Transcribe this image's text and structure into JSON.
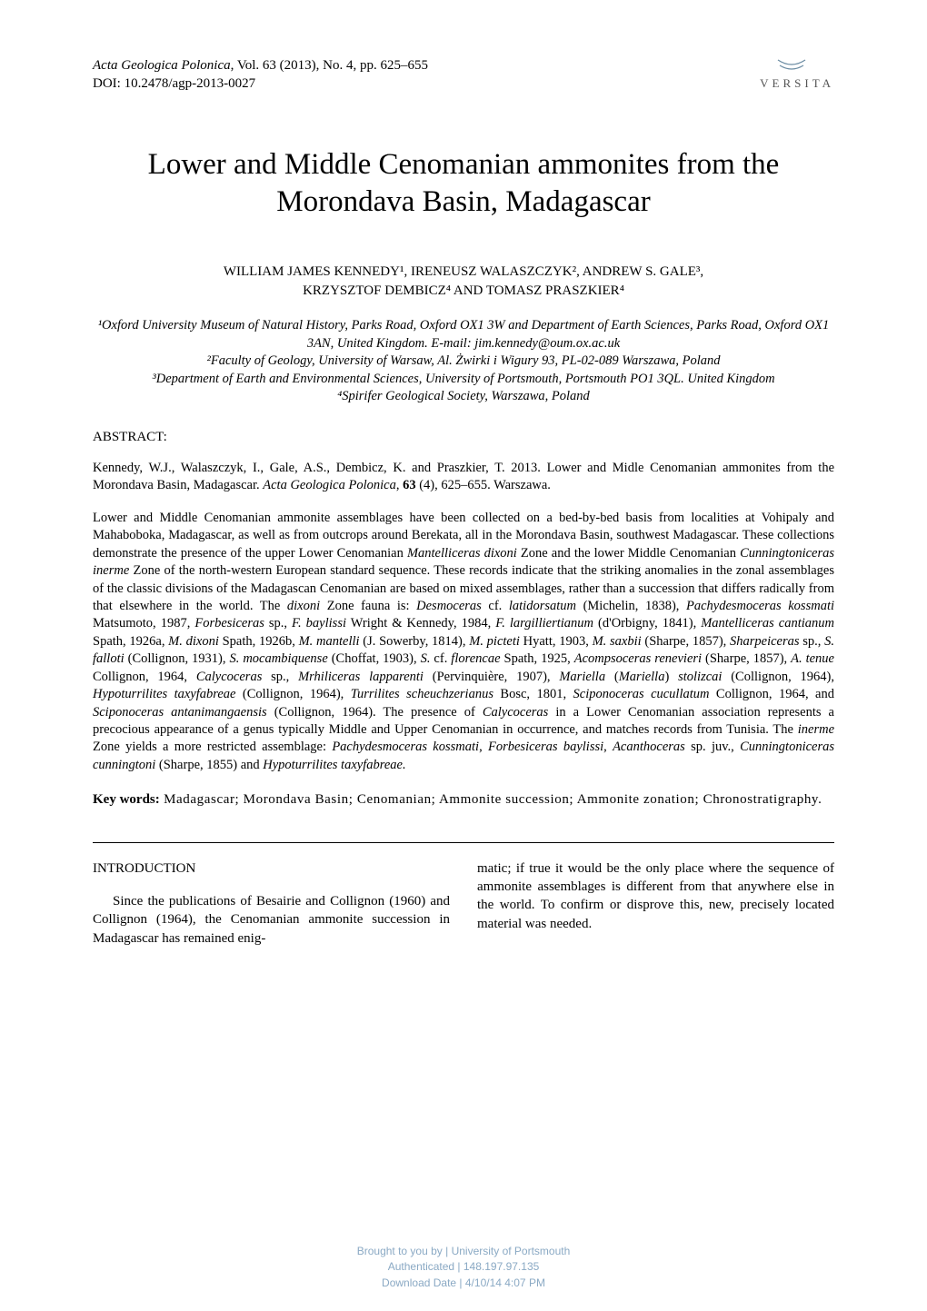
{
  "header": {
    "journal_name": "Acta Geologica Polonica",
    "vol_info": ", Vol. 63 (2013), No. 4, pp. 625–655",
    "doi": "DOI: 10.2478/agp-2013-0027",
    "publisher": "VERSITA",
    "logo_color": "#6b8ca3"
  },
  "title": "Lower and Middle Cenomanian ammonites from the Morondava Basin, Madagascar",
  "authors_line1": "WILLIAM JAMES KENNEDY¹, IRENEUSZ WALASZCZYK², ANDREW S. GALE³,",
  "authors_line2": "KRZYSZTOF DEMBICZ⁴ AND TOMASZ PRASZKIER⁴",
  "affiliations": {
    "a1": "¹Oxford University Museum of Natural History, Parks Road, Oxford OX1 3W and Department of Earth Sciences, Parks Road, Oxford OX1 3AN, United Kingdom. E-mail: jim.kennedy@oum.ox.ac.uk",
    "a2": "²Faculty of Geology, University of Warsaw, Al. Żwirki i Wigury 93, PL-02-089 Warszawa, Poland",
    "a3": "³Department of Earth and Environmental Sciences, University of Portsmouth, Portsmouth PO1 3QL. United Kingdom",
    "a4": "⁴Spirifer Geological Society, Warszawa, Poland"
  },
  "abstract_label": "ABSTRACT:",
  "citation": {
    "pre": "Kennedy, W.J., Walaszczyk, I., Gale, A.S., Dembicz, K. and Praszkier, T. 2013. Lower and Midle Cenomanian ammonites from the Morondava Basin, Madagascar. ",
    "journal": "Acta Geologica Polonica",
    "mid": ", ",
    "vol": "63",
    "post": " (4), 625–655. Warszawa."
  },
  "abstract_body_html": "Lower and Middle Cenomanian ammonite assemblages have been collected on a bed-by-bed basis from localities at Vohipaly and Mahaboboka, Madagascar, as well as from outcrops around Berekata, all in the Morondava Basin, southwest Madagascar. These collections demonstrate the presence of the upper Lower Cenomanian <em>Mantelliceras dixoni</em> Zone and the lower Middle Cenomanian <em>Cunningtoniceras inerme</em> Zone of the north-western European standard sequence. These records indicate that the striking anomalies in the zonal assemblages of the classic divisions of the Madagascan Cenomanian are based on mixed assemblages, rather than a succession that differs radically from that elsewhere in the world. The <em>dixoni</em> Zone fauna is: <em>Desmoceras</em> cf. <em>latidorsatum</em> (Michelin, 1838), <em>Pachydesmoceras kossmati</em> Matsumoto, 1987, <em>Forbesiceras</em> sp., <em>F. baylissi</em> Wright & Kennedy, 1984, <em>F. largilliertianum</em> (d'Orbigny, 1841), <em>Mantelliceras cantianum</em> Spath, 1926a, <em>M. dixoni</em> Spath, 1926b, <em>M. mantelli</em> (J. Sowerby, 1814), <em>M. picteti</em> Hyatt, 1903, <em>M. saxbii</em> (Sharpe, 1857), <em>Sharpeiceras</em> sp., <em>S. falloti</em> (Collignon, 1931), <em>S. mocambiquense</em> (Choffat, 1903), <em>S.</em> cf. <em>florencae</em> Spath, 1925, <em>Acompsoceras renevieri</em> (Sharpe, 1857), <em>A. tenue</em> Collignon, 1964, <em>Calycoceras</em> sp., <em>Mrhiliceras lapparenti</em> (Pervinquière, 1907), <em>Mariella</em> (<em>Mariella</em>) <em>stolizcai</em> (Collignon, 1964), <em>Hypoturrilites taxyfabreae</em> (Collignon, 1964), <em>Turrilites scheuchzerianus</em> Bosc, 1801, <em>Sciponoceras cucullatum</em> Collignon, 1964, and <em>Sciponoceras antanimangaensis</em> (Collignon, 1964). The presence of <em>Calycoceras</em> in a Lower Cenomanian association represents a precocious appearance of a genus typically Middle and Upper Cenomanian in occurrence, and matches records from Tunisia. The <em>inerme</em> Zone yields a more restricted assemblage: <em>Pachydesmoceras kossmati</em>, <em>Forbesiceras baylissi</em>, <em>Acanthoceras</em> sp. juv., <em>Cunningtoniceras cunningtoni</em> (Sharpe, 1855) and <em>Hypoturrilites taxyfabreae.</em>",
  "keywords": {
    "label": "Key words:",
    "body": " Madagascar; Morondava Basin; Cenomanian; Ammonite succession; Ammonite zonation; Chronostratigraphy."
  },
  "intro": {
    "heading": "INTRODUCTION",
    "col1": "Since the publications of Besairie and Collignon (1960) and Collignon (1964), the Cenomanian ammonite succession in Madagascar has remained enig-",
    "col2": "matic; if true it would be the only place where the sequence of ammonite assemblages is different from that anywhere else in the world. To confirm or disprove this, new, precisely located material was needed."
  },
  "footer": {
    "line1": "Brought to you by | University of Portsmouth",
    "line2": "Authenticated | 148.197.97.135",
    "line3": "Download Date | 4/10/14 4:07 PM",
    "text_color": "#8aa9c4"
  },
  "colors": {
    "background": "#ffffff",
    "text": "#000000",
    "rule": "#000000"
  },
  "typography": {
    "body_family": "Times New Roman",
    "title_size_pt": 25,
    "body_size_pt": 11,
    "footer_family": "Arial"
  }
}
